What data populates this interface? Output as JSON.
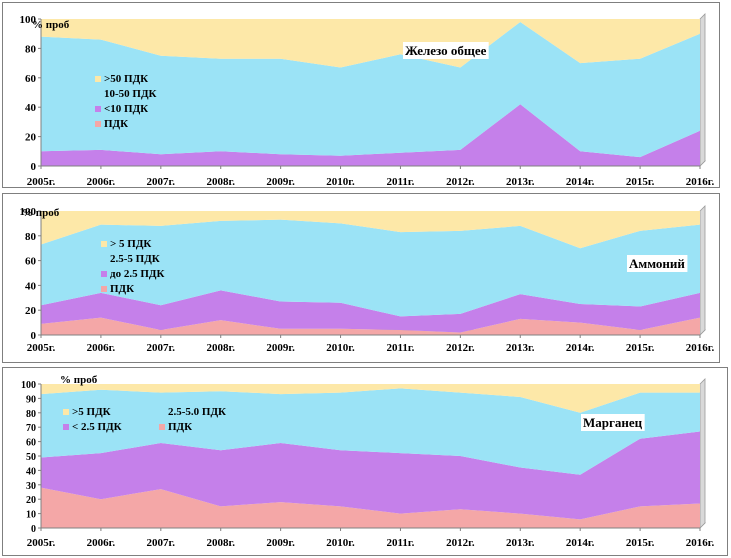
{
  "chart_data": [
    {
      "type": "area",
      "stacked": true,
      "title": "Железо общее",
      "ylabel": "% проб",
      "ylim": [
        0,
        100
      ],
      "yticks": [
        "0",
        "20",
        "40",
        "60",
        "80",
        "100"
      ],
      "categories": [
        "2005г.",
        "2006г.",
        "2007г.",
        "2008г.",
        "2009г.",
        "2010г.",
        "2011г.",
        "2012г.",
        "2013г.",
        "2014г.",
        "2015г.",
        "2016г."
      ],
      "legend_position": "left",
      "series": [
        {
          "name": "ПДК",
          "color": "#f4a7a7",
          "values": [
            0,
            0,
            0,
            0,
            0,
            0,
            0,
            0,
            0,
            0,
            0,
            0
          ]
        },
        {
          "name": "<10 ПДК",
          "color": "#c580ea",
          "values": [
            10,
            11,
            8,
            10,
            8,
            7,
            9,
            11,
            42,
            10,
            6,
            24
          ]
        },
        {
          "name": "10-50 ПДК",
          "color": "#9be3f6",
          "values": [
            78,
            75,
            67,
            63,
            65,
            60,
            67,
            56,
            56,
            60,
            67,
            66
          ]
        },
        {
          "name": ">50 ПДК",
          "color": "#fde8a8",
          "values": [
            12,
            14,
            25,
            27,
            27,
            33,
            24,
            33,
            2,
            30,
            27,
            10
          ]
        }
      ]
    },
    {
      "type": "area",
      "stacked": true,
      "title": "Аммоний",
      "ylabel": "% проб",
      "ylim": [
        0,
        100
      ],
      "yticks": [
        "0",
        "20",
        "40",
        "60",
        "80",
        "100"
      ],
      "categories": [
        "2005г.",
        "2006г.",
        "2007г.",
        "2008г.",
        "2009г.",
        "2010г.",
        "2011г.",
        "2012г.",
        "2013г.",
        "2014г.",
        "2015г.",
        "2016г."
      ],
      "legend_position": "left",
      "series": [
        {
          "name": "ПДК",
          "color": "#f4a7a7",
          "values": [
            9,
            14,
            4,
            12,
            5,
            5,
            4,
            2,
            13,
            10,
            4,
            14
          ]
        },
        {
          "name": "до 2.5 ПДК",
          "color": "#c580ea",
          "values": [
            15,
            20,
            20,
            24,
            22,
            21,
            11,
            15,
            20,
            15,
            19,
            20
          ]
        },
        {
          "name": "2.5-5 ПДК",
          "color": "#9be3f6",
          "values": [
            49,
            55,
            64,
            56,
            66,
            64,
            68,
            67,
            55,
            45,
            61,
            55
          ]
        },
        {
          "name": "> 5 ПДК",
          "color": "#fde8a8",
          "values": [
            27,
            11,
            12,
            8,
            7,
            10,
            17,
            16,
            12,
            30,
            16,
            11
          ]
        }
      ]
    },
    {
      "type": "area",
      "stacked": true,
      "title": "Марганец",
      "ylabel": "% проб",
      "ylim": [
        0,
        100
      ],
      "yticks": [
        "0",
        "10",
        "20",
        "30",
        "40",
        "50",
        "60",
        "70",
        "80",
        "90",
        "100"
      ],
      "categories": [
        "2005г.",
        "2006г.",
        "2007г.",
        "2008г.",
        "2009г.",
        "2010г.",
        "2011г.",
        "2012г.",
        "2013г.",
        "2014г.",
        "2015г.",
        "2016г."
      ],
      "legend_position": "top-left",
      "series": [
        {
          "name": "ПДК",
          "color": "#f4a7a7",
          "values": [
            28,
            20,
            27,
            15,
            18,
            15,
            10,
            13,
            10,
            6,
            15,
            17
          ]
        },
        {
          "name": "< 2.5 ПДК",
          "color": "#c580ea",
          "values": [
            21,
            32,
            32,
            39,
            41,
            39,
            42,
            37,
            32,
            31,
            47,
            50
          ]
        },
        {
          "name": "2.5-5.0 ПДК",
          "color": "#9be3f6",
          "values": [
            44,
            44,
            35,
            41,
            34,
            40,
            45,
            44,
            49,
            43,
            32,
            27
          ]
        },
        {
          "name": ">5 ПДК",
          "color": "#fde8a8",
          "values": [
            7,
            4,
            6,
            5,
            7,
            6,
            3,
            6,
            9,
            20,
            6,
            6
          ]
        }
      ]
    }
  ]
}
